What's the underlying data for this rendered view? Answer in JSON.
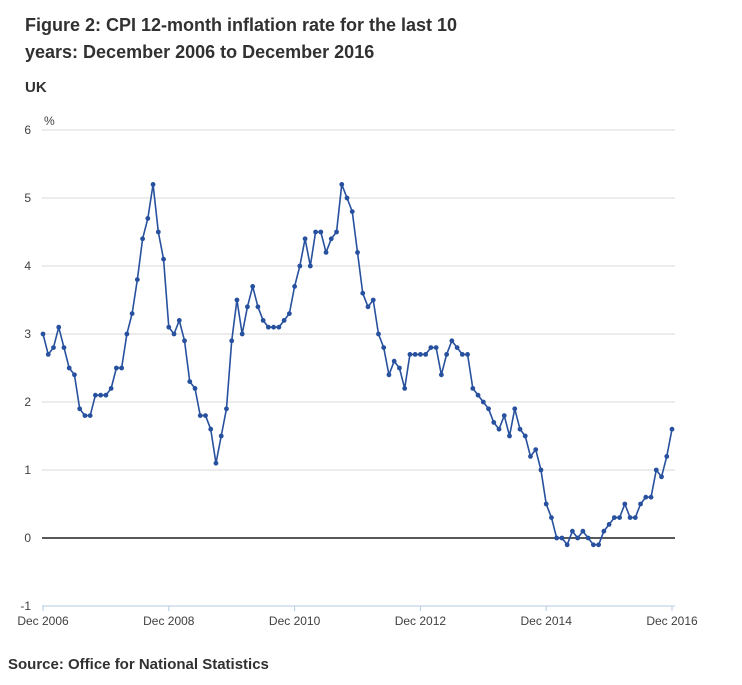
{
  "figure": {
    "title": "Figure 2: CPI 12-month inflation rate for the last 10 years: December 2006 to December 2016",
    "region_label": "UK",
    "source": "Source: Office for National Statistics"
  },
  "chart_data": {
    "type": "line",
    "series_name": "CPI 12-month inflation rate",
    "x_frequency": "monthly",
    "x_start_label": "Dec 2006",
    "x_end_label": "Dec 2016",
    "x_tick_labels": [
      "Dec 2006",
      "Dec 2008",
      "Dec 2010",
      "Dec 2012",
      "Dec 2014",
      "Dec 2016"
    ],
    "x_tick_month_index": [
      0,
      24,
      48,
      72,
      96,
      120
    ],
    "y_tick_labels": [
      6,
      5,
      4,
      3,
      2,
      1,
      0,
      -1
    ],
    "ylim": [
      -1,
      6
    ],
    "ylabel": "%",
    "grid": true,
    "legend_position": "none",
    "markers": true,
    "values": [
      3.0,
      2.7,
      2.8,
      3.1,
      2.8,
      2.5,
      2.4,
      1.9,
      1.8,
      1.8,
      2.1,
      2.1,
      2.1,
      2.2,
      2.5,
      2.5,
      3.0,
      3.3,
      3.8,
      4.4,
      4.7,
      5.2,
      4.5,
      4.1,
      3.1,
      3.0,
      3.2,
      2.9,
      2.3,
      2.2,
      1.8,
      1.8,
      1.6,
      1.1,
      1.5,
      1.9,
      2.9,
      3.5,
      3.0,
      3.4,
      3.7,
      3.4,
      3.2,
      3.1,
      3.1,
      3.1,
      3.2,
      3.3,
      3.7,
      4.0,
      4.4,
      4.0,
      4.5,
      4.5,
      4.2,
      4.4,
      4.5,
      5.2,
      5.0,
      4.8,
      4.2,
      3.6,
      3.4,
      3.5,
      3.0,
      2.8,
      2.4,
      2.6,
      2.5,
      2.2,
      2.7,
      2.7,
      2.7,
      2.7,
      2.8,
      2.8,
      2.4,
      2.7,
      2.9,
      2.8,
      2.7,
      2.7,
      2.2,
      2.1,
      2.0,
      1.9,
      1.7,
      1.6,
      1.8,
      1.5,
      1.9,
      1.6,
      1.5,
      1.2,
      1.3,
      1.0,
      0.5,
      0.3,
      0.0,
      0.0,
      -0.1,
      0.1,
      0.0,
      0.1,
      0.0,
      -0.1,
      -0.1,
      0.1,
      0.2,
      0.3,
      0.3,
      0.5,
      0.3,
      0.3,
      0.5,
      0.6,
      0.6,
      1.0,
      0.9,
      1.2,
      1.6
    ],
    "colors": {
      "line": "#27519e",
      "marker": "#27519e",
      "gridline": "#d9d9d9",
      "zero_line": "#58595b",
      "axis_baseline": "#b3cde3",
      "axis_text": "#414042"
    }
  }
}
